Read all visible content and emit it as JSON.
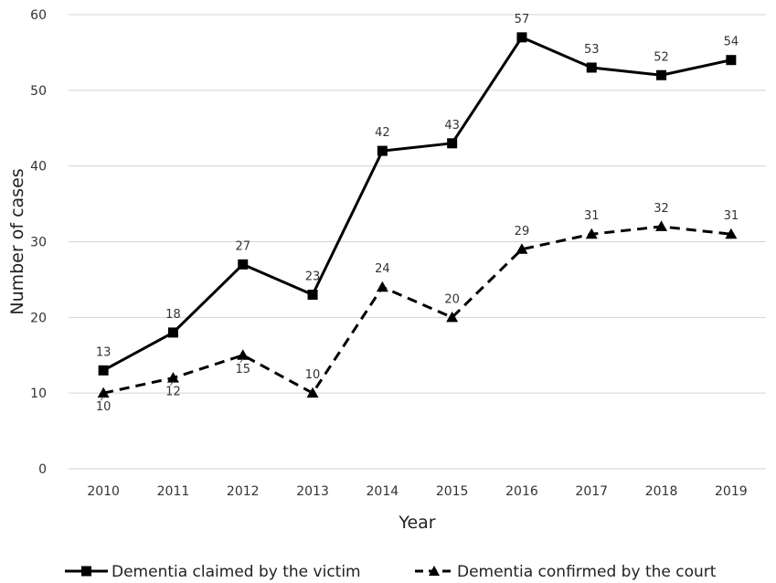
{
  "chart_data": {
    "type": "line",
    "xlabel": "Year",
    "ylabel": "Number of cases",
    "ylim": [
      0,
      60
    ],
    "yticks": [
      0,
      10,
      20,
      30,
      40,
      50,
      60
    ],
    "grid": true,
    "legend_position": "bottom",
    "categories": [
      "2010",
      "2011",
      "2012",
      "2013",
      "2014",
      "2015",
      "2016",
      "2017",
      "2018",
      "2019"
    ],
    "series": [
      {
        "name": "Dementia claimed by the victim",
        "values": [
          13,
          18,
          27,
          23,
          42,
          43,
          57,
          53,
          52,
          54
        ],
        "line_style": "solid",
        "marker": "square",
        "color": "#000000"
      },
      {
        "name": "Dementia confirmed by the court",
        "values": [
          10,
          12,
          15,
          10,
          24,
          20,
          29,
          31,
          32,
          31
        ],
        "line_style": "dashed",
        "marker": "triangle",
        "color": "#000000"
      }
    ]
  }
}
